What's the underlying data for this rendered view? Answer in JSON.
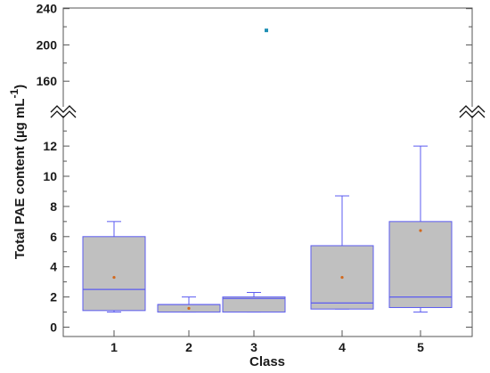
{
  "chart_data": {
    "type": "box",
    "xlabel": "Class",
    "ylabel": "Total PAE content (µg mL⁻¹)",
    "ylabel_main": "Total PAE content (µg mL",
    "ylabel_exp": "-1",
    "ylabel_close": ")",
    "categories": [
      "1",
      "2",
      "3",
      "4",
      "5"
    ],
    "y_axis_segments": [
      {
        "range": [
          0,
          13.5
        ],
        "ticks": [
          "0",
          "2",
          "4",
          "6",
          "8",
          "10",
          "12"
        ]
      },
      {
        "range": [
          143,
          243
        ],
        "ticks": [
          "160",
          "200",
          "240"
        ]
      }
    ],
    "axis_break": true,
    "grid": false,
    "boxes": [
      {
        "category": "1",
        "whisker_low": 1.0,
        "q1": 1.1,
        "median": 2.5,
        "q3": 6.0,
        "whisker_high": 7.0,
        "mean": 3.3,
        "outliers": []
      },
      {
        "category": "2",
        "whisker_low": 1.0,
        "q1": 1.0,
        "median": 1.5,
        "q3": 1.5,
        "whisker_high": 2.0,
        "mean": 1.25,
        "outliers": []
      },
      {
        "category": "3",
        "whisker_low": 1.0,
        "q1": 1.0,
        "median": 1.9,
        "q3": 2.0,
        "whisker_high": 2.3,
        "mean": null,
        "outliers": [
          216
        ]
      },
      {
        "category": "4",
        "whisker_low": 1.2,
        "q1": 1.2,
        "median": 1.6,
        "q3": 5.4,
        "whisker_high": 8.7,
        "mean": 3.3,
        "outliers": []
      },
      {
        "category": "5",
        "whisker_low": 1.0,
        "q1": 1.3,
        "median": 2.0,
        "q3": 7.0,
        "whisker_high": 12.0,
        "mean": 6.4,
        "outliers": []
      }
    ],
    "colors": {
      "box_fill": "#c0c0c0",
      "box_stroke": "#5b5bf0",
      "mean_marker": "#d2691e",
      "outlier_marker": "#1f8fb4",
      "axis": "#555555"
    }
  }
}
